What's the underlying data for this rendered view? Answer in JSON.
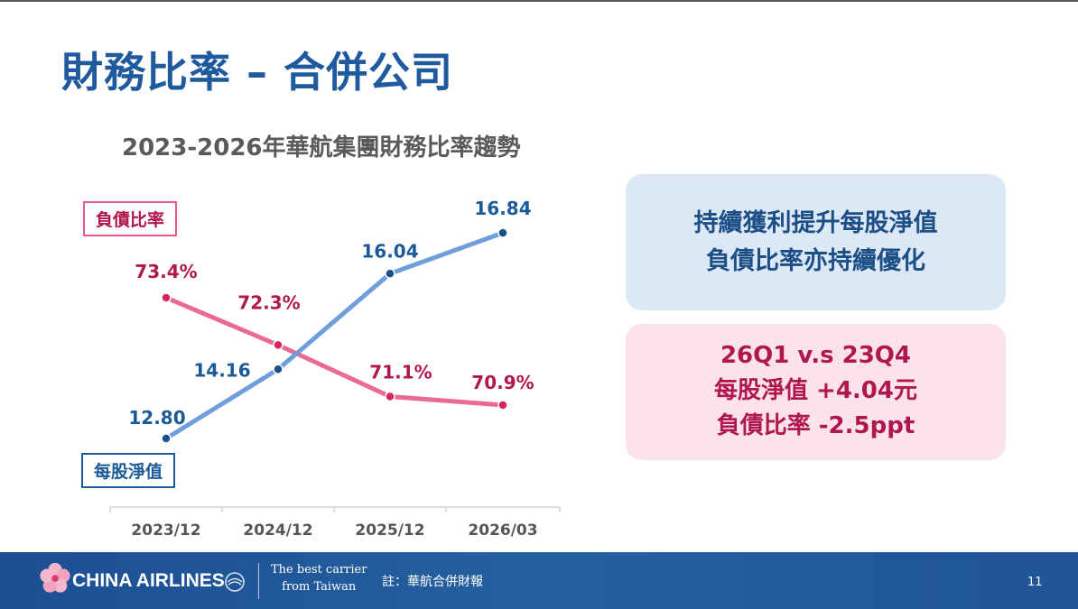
{
  "slide": {
    "title": "財務比率 – 合併公司",
    "subtitle": "2023-2026年華航集團財務比率趨勢"
  },
  "chart_data": {
    "type": "line",
    "categories": [
      "2023/12",
      "2024/12",
      "2025/12",
      "2026/03"
    ],
    "series": [
      {
        "name": "負債比率",
        "values": [
          73.4,
          72.3,
          71.1,
          70.9
        ],
        "labels": [
          "73.4%",
          "72.3%",
          "71.1%",
          "70.9%"
        ],
        "color": "#ea6a97",
        "label_color": "#b0174f",
        "marker_color": "#d7265f"
      },
      {
        "name": "每股淨值",
        "values": [
          12.8,
          14.16,
          16.04,
          16.84
        ],
        "labels": [
          "12.80",
          "14.16",
          "16.04",
          "16.84"
        ],
        "color": "#6f9edc",
        "label_color": "#1b5a96",
        "marker_color": "#1b4f8a"
      }
    ],
    "grid": false,
    "legend": [
      "負債比率",
      "每股淨值"
    ]
  },
  "cards": {
    "highlight": [
      "持續獲利提升每股淨值",
      "負債比率亦持續優化"
    ],
    "comparison": [
      "26Q1 v.s 23Q4",
      "每股淨值 +4.04元",
      "負債比率 -2.5ppt"
    ]
  },
  "footer": {
    "brand": "CHINA AIRLINES",
    "slogan": [
      "The best carrier",
      "from Taiwan"
    ],
    "note": "註：華航合併財報",
    "page": "11"
  },
  "colors": {
    "title": "#1f5a9e",
    "footer_bg": "#1c4f94",
    "card_blue_bg": "#dde8f7",
    "card_pink_bg": "#fce2ea"
  }
}
